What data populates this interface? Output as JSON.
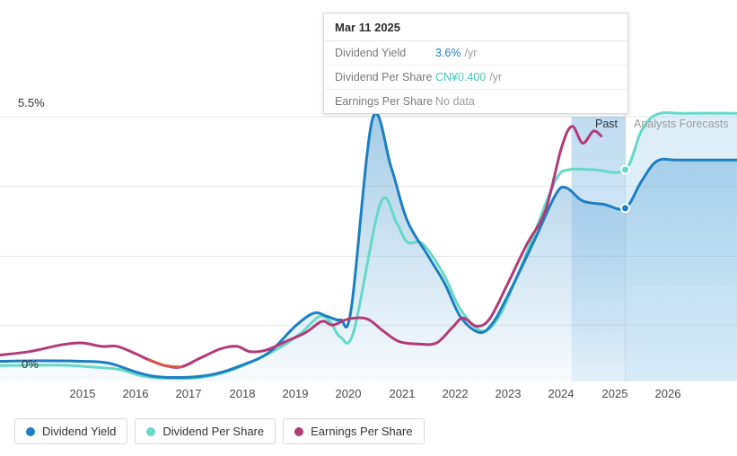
{
  "tooltip": {
    "title": "Mar 11 2025",
    "rows": [
      {
        "label": "Dividend Yield",
        "value": "3.6%",
        "suffix": "/yr",
        "value_color": "#1b7fc1"
      },
      {
        "label": "Dividend Per Share",
        "value": "CN¥0.400",
        "suffix": "/yr",
        "value_color": "#47c7b3"
      },
      {
        "label": "Earnings Per Share",
        "value": "No data",
        "suffix": "",
        "value_color": "#9e9e9e"
      }
    ]
  },
  "axis": {
    "y_top_label": "5.5%",
    "y_bottom_label": "0%"
  },
  "annotations": {
    "past_label": "Past",
    "forecast_label": "Analysts Forecasts"
  },
  "legend": [
    {
      "label": "Dividend Yield",
      "color": "#1b7fc1"
    },
    {
      "label": "Dividend Per Share",
      "color": "#65d9c6"
    },
    {
      "label": "Earnings Per Share",
      "color": "#b23a77"
    }
  ],
  "chart_data": {
    "type": "line",
    "title": "",
    "xlabel": "",
    "ylabel": "",
    "xlim": [
      2013.45,
      2027.3
    ],
    "ylim": [
      0,
      5.5
    ],
    "x_ticks": [
      2015,
      2016,
      2017,
      2018,
      2019,
      2020,
      2021,
      2022,
      2023,
      2024,
      2025,
      2026
    ],
    "y_axis_labels": [
      "0%",
      "5.5%"
    ],
    "gridlines_pct": [
      1.17,
      2.6,
      4.05,
      5.5
    ],
    "grid": true,
    "legend_position": "bottom",
    "divider_x": 2025.2,
    "past_band": {
      "from": 2024.19,
      "to": 2025.2,
      "color": "#7fb8e3"
    },
    "forecast_fill": {
      "color": "#8ec6ea",
      "opacity": 0.3
    },
    "series": [
      {
        "name": "Dividend Yield",
        "color": "#1b7fc1",
        "area": true,
        "marker": {
          "x": 2025.2,
          "y": 3.6
        },
        "points": [
          [
            2013.45,
            0.42
          ],
          [
            2014.2,
            0.43
          ],
          [
            2015.0,
            0.42
          ],
          [
            2015.5,
            0.38
          ],
          [
            2016.0,
            0.2
          ],
          [
            2016.4,
            0.1
          ],
          [
            2017.0,
            0.09
          ],
          [
            2017.5,
            0.16
          ],
          [
            2018.0,
            0.34
          ],
          [
            2018.5,
            0.6
          ],
          [
            2019.0,
            1.15
          ],
          [
            2019.35,
            1.42
          ],
          [
            2019.6,
            1.35
          ],
          [
            2019.85,
            1.28
          ],
          [
            2020.05,
            1.5
          ],
          [
            2020.45,
            5.45
          ],
          [
            2020.8,
            4.45
          ],
          [
            2021.1,
            3.35
          ],
          [
            2021.5,
            2.6
          ],
          [
            2021.8,
            2.05
          ],
          [
            2022.1,
            1.35
          ],
          [
            2022.45,
            1.02
          ],
          [
            2022.7,
            1.2
          ],
          [
            2023.0,
            1.8
          ],
          [
            2023.5,
            2.95
          ],
          [
            2023.9,
            3.9
          ],
          [
            2024.1,
            4.02
          ],
          [
            2024.4,
            3.75
          ],
          [
            2024.8,
            3.68
          ],
          [
            2025.2,
            3.6
          ],
          [
            2025.5,
            4.15
          ],
          [
            2025.8,
            4.58
          ],
          [
            2026.2,
            4.6
          ],
          [
            2027.3,
            4.6
          ]
        ]
      },
      {
        "name": "Dividend Per Share",
        "color": "#65d9c6",
        "area_from": 2025.2,
        "marker": {
          "x": 2025.2,
          "y": 4.4
        },
        "points": [
          [
            2013.45,
            0.33
          ],
          [
            2014.5,
            0.34
          ],
          [
            2015.2,
            0.3
          ],
          [
            2015.7,
            0.25
          ],
          [
            2016.1,
            0.12
          ],
          [
            2016.5,
            0.07
          ],
          [
            2017.2,
            0.08
          ],
          [
            2017.7,
            0.2
          ],
          [
            2018.2,
            0.42
          ],
          [
            2018.7,
            0.7
          ],
          [
            2019.1,
            1.0
          ],
          [
            2019.45,
            1.35
          ],
          [
            2019.65,
            1.25
          ],
          [
            2019.85,
            0.92
          ],
          [
            2020.1,
            1.05
          ],
          [
            2020.6,
            3.7
          ],
          [
            2020.9,
            3.3
          ],
          [
            2021.1,
            2.9
          ],
          [
            2021.4,
            2.85
          ],
          [
            2021.8,
            2.2
          ],
          [
            2022.1,
            1.5
          ],
          [
            2022.5,
            1.05
          ],
          [
            2022.8,
            1.3
          ],
          [
            2023.1,
            2.0
          ],
          [
            2023.5,
            3.1
          ],
          [
            2023.9,
            4.2
          ],
          [
            2024.15,
            4.4
          ],
          [
            2024.6,
            4.4
          ],
          [
            2025.2,
            4.4
          ],
          [
            2025.5,
            5.2
          ],
          [
            2025.8,
            5.55
          ],
          [
            2026.3,
            5.57
          ],
          [
            2027.3,
            5.57
          ]
        ]
      },
      {
        "name": "Earnings Per Share",
        "color": "#b23a77",
        "overlay": {
          "from": 2016.1,
          "to": 2016.95,
          "color": "#d6564a"
        },
        "points": [
          [
            2013.45,
            0.55
          ],
          [
            2014.0,
            0.62
          ],
          [
            2014.6,
            0.76
          ],
          [
            2015.0,
            0.8
          ],
          [
            2015.35,
            0.73
          ],
          [
            2015.65,
            0.73
          ],
          [
            2015.95,
            0.6
          ],
          [
            2016.25,
            0.45
          ],
          [
            2016.55,
            0.33
          ],
          [
            2016.85,
            0.3
          ],
          [
            2017.2,
            0.48
          ],
          [
            2017.6,
            0.68
          ],
          [
            2017.9,
            0.73
          ],
          [
            2018.15,
            0.62
          ],
          [
            2018.45,
            0.65
          ],
          [
            2018.8,
            0.82
          ],
          [
            2019.2,
            1.02
          ],
          [
            2019.5,
            1.25
          ],
          [
            2019.7,
            1.17
          ],
          [
            2020.0,
            1.3
          ],
          [
            2020.35,
            1.3
          ],
          [
            2020.65,
            1.05
          ],
          [
            2020.95,
            0.83
          ],
          [
            2021.3,
            0.78
          ],
          [
            2021.65,
            0.8
          ],
          [
            2021.95,
            1.12
          ],
          [
            2022.15,
            1.32
          ],
          [
            2022.4,
            1.15
          ],
          [
            2022.65,
            1.3
          ],
          [
            2023.0,
            2.05
          ],
          [
            2023.35,
            2.85
          ],
          [
            2023.7,
            3.55
          ],
          [
            2024.0,
            4.85
          ],
          [
            2024.2,
            5.3
          ],
          [
            2024.4,
            4.95
          ],
          [
            2024.6,
            5.2
          ],
          [
            2024.75,
            5.1
          ]
        ]
      }
    ]
  }
}
